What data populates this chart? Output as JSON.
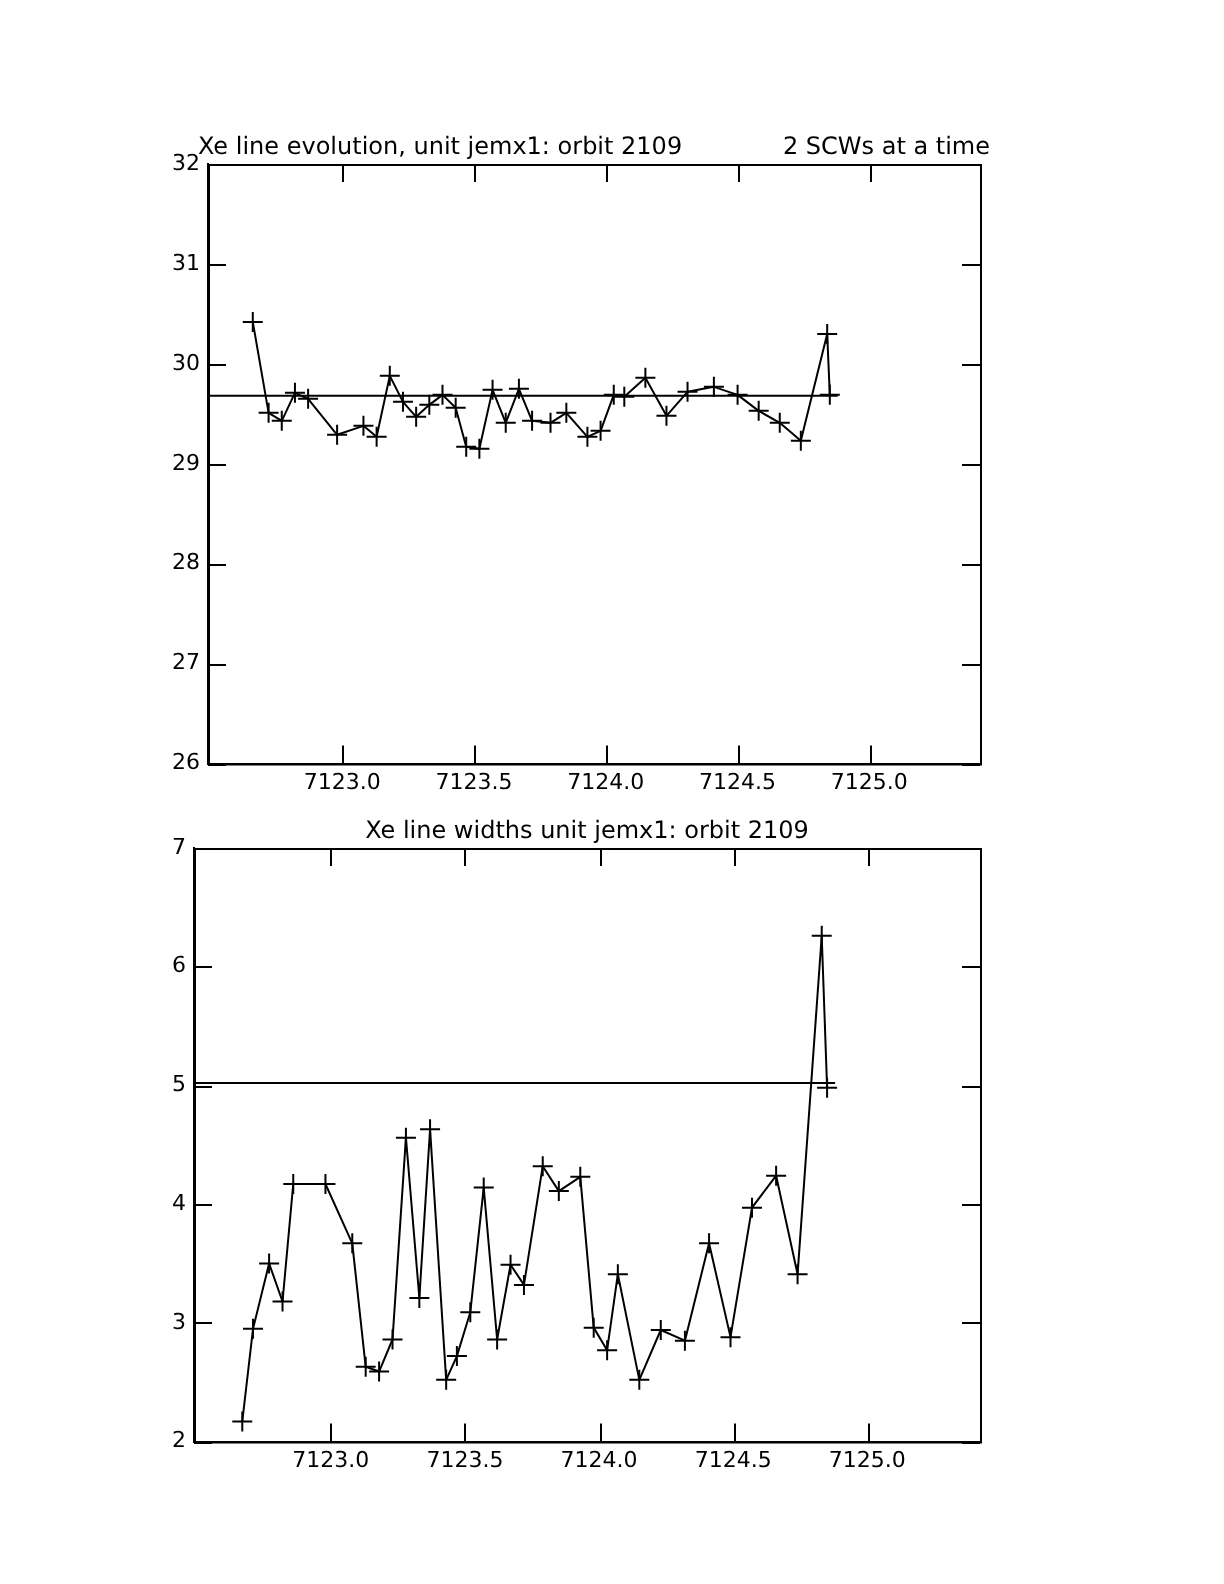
{
  "chart_data": [
    {
      "type": "line",
      "title": "Xe line evolution, unit jemx1: orbit 2109",
      "subtitle": "2 SCWs at a time",
      "marker": "cross",
      "legend": false,
      "grid": false,
      "xlim": [
        7122.49,
        7125.42
      ],
      "xticks": [
        {
          "value": 7123,
          "label": "7123.0"
        },
        {
          "value": 7123.5,
          "label": "7123.5"
        },
        {
          "value": 7124,
          "label": "7124.0"
        },
        {
          "value": 7124.5,
          "label": "7124.5"
        },
        {
          "value": 7125,
          "label": "7125.0"
        }
      ],
      "ylim": [
        26,
        32
      ],
      "yticks": [
        26,
        27,
        28,
        29,
        30,
        31,
        32
      ],
      "series": [
        {
          "color": "#000000",
          "x": [
            7122.66,
            7122.72,
            7122.77,
            7122.82,
            7122.87,
            7122.98,
            7123.08,
            7123.13,
            7123.18,
            7123.23,
            7123.28,
            7123.33,
            7123.38,
            7123.43,
            7123.47,
            7123.52,
            7123.57,
            7123.62,
            7123.67,
            7123.72,
            7123.79,
            7123.85,
            7123.93,
            7123.98,
            7124.03,
            7124.07,
            7124.15,
            7124.23,
            7124.31,
            7124.41,
            7124.5,
            7124.58,
            7124.66,
            7124.74,
            7124.84,
            7124.85
          ],
          "values": [
            30.42,
            29.51,
            29.43,
            29.71,
            29.65,
            29.29,
            29.38,
            29.27,
            29.88,
            29.62,
            29.47,
            29.59,
            29.69,
            29.56,
            29.17,
            29.15,
            29.74,
            29.41,
            29.75,
            29.43,
            29.41,
            29.51,
            29.27,
            29.33,
            29.69,
            29.67,
            29.86,
            29.48,
            29.72,
            29.77,
            29.69,
            29.53,
            29.41,
            29.23,
            30.3,
            29.69
          ]
        },
        {
          "color": "#000000",
          "marker": "none",
          "x": [
            7122.49,
            7124.88
          ],
          "values": [
            29.68,
            29.68
          ]
        }
      ]
    },
    {
      "type": "line",
      "title": "Xe line widths unit jemx1: orbit 2109",
      "marker": "cross",
      "legend": false,
      "grid": false,
      "xlim": [
        7122.49,
        7125.42
      ],
      "xticks": [
        {
          "value": 7123,
          "label": "7123.0"
        },
        {
          "value": 7123.5,
          "label": "7123.5"
        },
        {
          "value": 7124,
          "label": "7124.0"
        },
        {
          "value": 7124.5,
          "label": "7124.5"
        },
        {
          "value": 7125,
          "label": "7125.0"
        }
      ],
      "ylim": [
        2,
        7
      ],
      "yticks": [
        2,
        3,
        4,
        5,
        6,
        7
      ],
      "series": [
        {
          "color": "#000000",
          "x": [
            7122.67,
            7122.71,
            7122.77,
            7122.82,
            7122.86,
            7122.98,
            7123.08,
            7123.13,
            7123.18,
            7123.23,
            7123.28,
            7123.33,
            7123.37,
            7123.43,
            7123.47,
            7123.52,
            7123.57,
            7123.62,
            7123.67,
            7123.72,
            7123.79,
            7123.85,
            7123.93,
            7123.98,
            7124.03,
            7124.07,
            7124.15,
            7124.23,
            7124.32,
            7124.41,
            7124.49,
            7124.57,
            7124.66,
            7124.74,
            7124.83,
            7124.85
          ],
          "values": [
            2.17,
            2.95,
            3.5,
            3.18,
            4.17,
            4.17,
            3.67,
            2.63,
            2.59,
            2.86,
            4.56,
            3.21,
            4.63,
            2.52,
            2.72,
            3.09,
            4.14,
            2.86,
            3.49,
            3.32,
            4.32,
            4.11,
            4.23,
            2.96,
            2.77,
            3.41,
            2.52,
            2.94,
            2.85,
            3.67,
            2.88,
            3.97,
            4.24,
            3.41,
            6.26,
            4.98
          ]
        },
        {
          "color": "#000000",
          "marker": "none",
          "x": [
            7122.49,
            7124.88
          ],
          "values": [
            5.02,
            5.02
          ]
        }
      ]
    }
  ]
}
